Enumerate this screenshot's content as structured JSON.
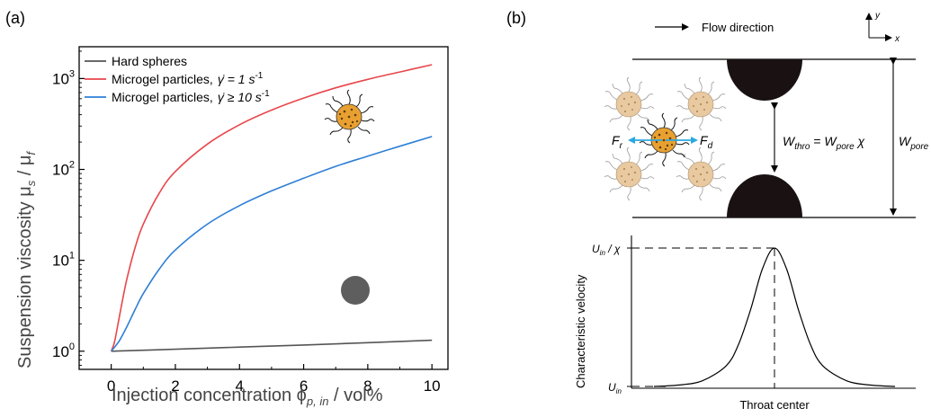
{
  "panel_a_label": "(a)",
  "panel_b_label": "(b)",
  "chart_data": [
    {
      "type": "line",
      "xlabel": "Injection concentration ϕ",
      "xlabel_sub": "p, in",
      "xlabel_unit": " / vol%",
      "ylabel": "Suspension viscosity μ",
      "ylabel_sub1": "s",
      "ylabel_mid": " / μ",
      "ylabel_sub2": "f",
      "xlim": [
        -1,
        10.5
      ],
      "y_log": true,
      "ylim_log10": [
        -0.2,
        3.35
      ],
      "x_ticks": [
        0,
        2,
        4,
        6,
        8,
        10
      ],
      "x_tick_labels": [
        "0",
        "2",
        "4",
        "6",
        "8",
        "10"
      ],
      "y_ticks_log10": [
        0,
        1,
        2,
        3
      ],
      "y_tick_bases": [
        "10",
        "10",
        "10",
        "10"
      ],
      "y_tick_exps": [
        "0",
        "1",
        "2",
        "3"
      ],
      "legend_position": "top-left",
      "series": [
        {
          "name": "Hard spheres",
          "color": "#555555",
          "x": [
            0,
            2,
            4,
            6,
            8,
            10
          ],
          "y": [
            1.0,
            1.05,
            1.11,
            1.17,
            1.24,
            1.32
          ]
        },
        {
          "name": "Microgel particles,",
          "name_rate": "γ̇ = 1 s",
          "name_exp": "-1",
          "color": "#e8464b",
          "x": [
            0,
            0.1,
            0.2,
            0.35,
            0.5,
            0.75,
            1,
            1.5,
            2,
            3,
            4,
            5,
            6,
            7,
            8,
            9,
            10
          ],
          "y": [
            1.0,
            1.25,
            1.9,
            3.6,
            6.5,
            14,
            25,
            55,
            95,
            190,
            310,
            450,
            610,
            790,
            980,
            1180,
            1420
          ]
        },
        {
          "name": "Microgel particles,",
          "name_rate": "γ̇ ≥ 10 s",
          "name_exp": "-1",
          "color": "#2d7fd6",
          "x": [
            0,
            0.25,
            0.5,
            0.75,
            1,
            1.5,
            2,
            3,
            4,
            5,
            6,
            7,
            8,
            9,
            10
          ],
          "y": [
            1.0,
            1.3,
            1.9,
            2.9,
            4.3,
            8,
            13,
            25,
            40,
            58,
            80,
            108,
            140,
            180,
            230
          ]
        }
      ]
    },
    {
      "type": "line",
      "ylabel": "Characteristic velocity",
      "xlabel": "Throat center",
      "y_tick_top": "U",
      "y_tick_top_sub": "in",
      "y_tick_top_rest": " / χ",
      "y_tick_bottom": "U",
      "y_tick_bottom_sub": "in",
      "peak_x": 0,
      "series": [
        {
          "name": "",
          "x": [
            -1.0,
            -0.8,
            -0.6,
            -0.4,
            -0.3,
            -0.2,
            -0.1,
            0,
            0.1,
            0.2,
            0.3,
            0.4,
            0.6,
            0.8,
            1.0
          ],
          "y": [
            0.0,
            0.01,
            0.04,
            0.15,
            0.3,
            0.55,
            0.85,
            1.0,
            0.85,
            0.55,
            0.3,
            0.15,
            0.04,
            0.01,
            0.0
          ]
        }
      ]
    }
  ],
  "schematic": {
    "flow_direction": "Flow direction",
    "axis_y": "y",
    "axis_x": "x",
    "fr_main": "F",
    "fr_sub": "r",
    "fd_main": "F",
    "fd_sub": "d",
    "wthro_main": "W",
    "wthro_sub": "thro",
    "equals": " = ",
    "wpore_main": "W",
    "wpore_sub": "pore",
    "chi": " χ",
    "wpore2_main": "W",
    "wpore2_sub": "pore"
  },
  "colors": {
    "particle_core": "#e8a030",
    "particle_ghost": "#e8c9a0",
    "arrow_blue": "#2ba8e0",
    "obstacle": "#1a1212"
  }
}
